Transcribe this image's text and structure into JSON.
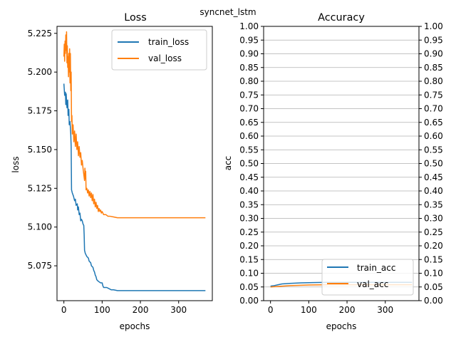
{
  "figure": {
    "suptitle": "syncnet_lstm"
  },
  "chart_data": [
    {
      "type": "line",
      "title": "Loss",
      "xlabel": "epochs",
      "ylabel": "loss",
      "xlim": [
        -18,
        388
      ],
      "ylim": [
        5.0525,
        5.2295
      ],
      "xticks": [
        0,
        100,
        200,
        300
      ],
      "yticks": [
        5.075,
        5.1,
        5.125,
        5.15,
        5.175,
        5.2,
        5.225
      ],
      "yticks_labels": [
        "5.075",
        "5.100",
        "5.125",
        "5.150",
        "5.175",
        "5.200",
        "5.225"
      ],
      "grid": false,
      "legend_position": "upper right",
      "series": [
        {
          "name": "train_loss",
          "color": "#1f77b4",
          "points": [
            [
              0,
              5.1925
            ],
            [
              2,
              5.185
            ],
            [
              4,
              5.187
            ],
            [
              5,
              5.179
            ],
            [
              6,
              5.186
            ],
            [
              8,
              5.177
            ],
            [
              10,
              5.182
            ],
            [
              11,
              5.172
            ],
            [
              13,
              5.176
            ],
            [
              14,
              5.166
            ],
            [
              16,
              5.168
            ],
            [
              18,
              5.16
            ],
            [
              19,
              5.152
            ],
            [
              20,
              5.124
            ],
            [
              22,
              5.122
            ],
            [
              25,
              5.12
            ],
            [
              28,
              5.117
            ],
            [
              30,
              5.118
            ],
            [
              32,
              5.114
            ],
            [
              35,
              5.115
            ],
            [
              36,
              5.111
            ],
            [
              38,
              5.113
            ],
            [
              40,
              5.108
            ],
            [
              42,
              5.109
            ],
            [
              44,
              5.104
            ],
            [
              46,
              5.105
            ],
            [
              48,
              5.104
            ],
            [
              50,
              5.102
            ],
            [
              52,
              5.101
            ],
            [
              53,
              5.095
            ],
            [
              54,
              5.085
            ],
            [
              56,
              5.083
            ],
            [
              58,
              5.082
            ],
            [
              60,
              5.081
            ],
            [
              64,
              5.08
            ],
            [
              66,
              5.078
            ],
            [
              70,
              5.077
            ],
            [
              72,
              5.075
            ],
            [
              76,
              5.074
            ],
            [
              78,
              5.072
            ],
            [
              80,
              5.071
            ],
            [
              82,
              5.069
            ],
            [
              84,
              5.068
            ],
            [
              86,
              5.066
            ],
            [
              90,
              5.065
            ],
            [
              96,
              5.064
            ],
            [
              100,
              5.064
            ],
            [
              102,
              5.062
            ],
            [
              104,
              5.061
            ],
            [
              108,
              5.061
            ],
            [
              112,
              5.061
            ],
            [
              116,
              5.0605
            ],
            [
              120,
              5.06
            ],
            [
              124,
              5.0595
            ],
            [
              130,
              5.0595
            ],
            [
              140,
              5.059
            ],
            [
              200,
              5.059
            ],
            [
              300,
              5.059
            ],
            [
              370,
              5.059
            ]
          ]
        },
        {
          "name": "val_loss",
          "color": "#ff7f0e",
          "points": [
            [
              0,
              5.21
            ],
            [
              1,
              5.218
            ],
            [
              2,
              5.207
            ],
            [
              3,
              5.22
            ],
            [
              4,
              5.212
            ],
            [
              5,
              5.224
            ],
            [
              6,
              5.214
            ],
            [
              7,
              5.226
            ],
            [
              8,
              5.206
            ],
            [
              9,
              5.217
            ],
            [
              10,
              5.203
            ],
            [
              11,
              5.21
            ],
            [
              12,
              5.197
            ],
            [
              13,
              5.212
            ],
            [
              14,
              5.2
            ],
            [
              15,
              5.215
            ],
            [
              16,
              5.193
            ],
            [
              17,
              5.212
            ],
            [
              18,
              5.188
            ],
            [
              19,
              5.2
            ],
            [
              20,
              5.168
            ],
            [
              21,
              5.172
            ],
            [
              22,
              5.16
            ],
            [
              24,
              5.166
            ],
            [
              26,
              5.155
            ],
            [
              28,
              5.162
            ],
            [
              30,
              5.152
            ],
            [
              32,
              5.16
            ],
            [
              34,
              5.15
            ],
            [
              36,
              5.155
            ],
            [
              38,
              5.146
            ],
            [
              40,
              5.152
            ],
            [
              42,
              5.145
            ],
            [
              44,
              5.148
            ],
            [
              46,
              5.14
            ],
            [
              48,
              5.143
            ],
            [
              50,
              5.138
            ],
            [
              52,
              5.134
            ],
            [
              54,
              5.13
            ],
            [
              55,
              5.138
            ],
            [
              56,
              5.131
            ],
            [
              57,
              5.136
            ],
            [
              58,
              5.124
            ],
            [
              60,
              5.125
            ],
            [
              62,
              5.122
            ],
            [
              64,
              5.124
            ],
            [
              66,
              5.12
            ],
            [
              68,
              5.123
            ],
            [
              70,
              5.119
            ],
            [
              72,
              5.122
            ],
            [
              74,
              5.117
            ],
            [
              76,
              5.121
            ],
            [
              78,
              5.115
            ],
            [
              80,
              5.118
            ],
            [
              82,
              5.113
            ],
            [
              84,
              5.116
            ],
            [
              86,
              5.112
            ],
            [
              88,
              5.114
            ],
            [
              90,
              5.11
            ],
            [
              92,
              5.112
            ],
            [
              94,
              5.11
            ],
            [
              96,
              5.111
            ],
            [
              98,
              5.109
            ],
            [
              100,
              5.11
            ],
            [
              104,
              5.108
            ],
            [
              110,
              5.108
            ],
            [
              115,
              5.107
            ],
            [
              120,
              5.107
            ],
            [
              130,
              5.1065
            ],
            [
              140,
              5.106
            ],
            [
              200,
              5.106
            ],
            [
              300,
              5.106
            ],
            [
              370,
              5.106
            ]
          ]
        }
      ]
    },
    {
      "type": "line",
      "title": "Accuracy",
      "xlabel": "epochs",
      "ylabel": "acc",
      "xlim": [
        -18,
        388
      ],
      "ylim": [
        0.0,
        1.0
      ],
      "xticks": [
        0,
        100,
        200,
        300
      ],
      "yticks_labels": [
        "0.00",
        "0.05",
        "0.10",
        "0.15",
        "0.20",
        "0.25",
        "0.30",
        "0.35",
        "0.40",
        "0.45",
        "0.50",
        "0.55",
        "0.60",
        "0.65",
        "0.70",
        "0.75",
        "0.80",
        "0.85",
        "0.90",
        "0.95",
        "1.00"
      ],
      "right_axis_labels": true,
      "grid": "horizontal",
      "legend_position": "lower right",
      "series": [
        {
          "name": "train_acc",
          "color": "#1f77b4",
          "points": [
            [
              0,
              0.053
            ],
            [
              10,
              0.055
            ],
            [
              20,
              0.058
            ],
            [
              30,
              0.061
            ],
            [
              50,
              0.063
            ],
            [
              80,
              0.065
            ],
            [
              110,
              0.066
            ],
            [
              150,
              0.067
            ],
            [
              250,
              0.067
            ],
            [
              370,
              0.067
            ]
          ]
        },
        {
          "name": "val_acc",
          "color": "#ff7f0e",
          "points": [
            [
              0,
              0.05
            ],
            [
              20,
              0.052
            ],
            [
              50,
              0.055
            ],
            [
              100,
              0.057
            ],
            [
              150,
              0.058
            ],
            [
              250,
              0.058
            ],
            [
              370,
              0.058
            ]
          ]
        }
      ]
    }
  ]
}
